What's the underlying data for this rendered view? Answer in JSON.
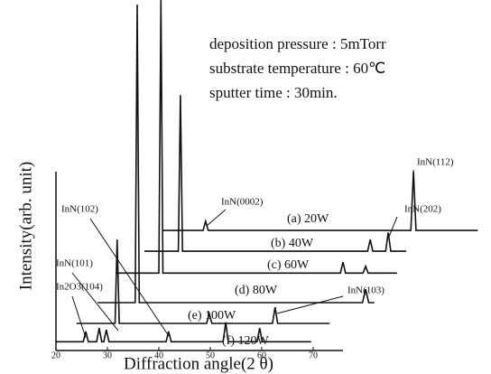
{
  "chart_data": {
    "type": "line",
    "xlabel": "Diffraction angle(2 θ)",
    "ylabel": "Intensity(arb. unit)",
    "xlim": [
      20,
      103
    ],
    "xticks": [
      20,
      30,
      40,
      50,
      60,
      70
    ],
    "ylim": [
      0,
      100
    ],
    "color": "#111111",
    "notes": [
      "deposition pressure : 5mTorr",
      "substrate temperature : 60℃",
      "sputter time : 30min."
    ],
    "annotations": [
      "InN(0002)",
      "InN(112)",
      "InN(202)",
      "InN(102)",
      "InN(101)",
      "In2O3(104)",
      "InN(103)"
    ],
    "series": [
      {
        "name": "(a) 20W",
        "x": [
          40.7,
          48.6,
          49.1,
          49.6,
          89,
          89.5,
          90,
          102
        ],
        "values": [
          34.6,
          34.6,
          37.2,
          34.6,
          34.6,
          51.3,
          34.6,
          34.6
        ]
      },
      {
        "name": "(b) 40W",
        "x": [
          37.2,
          43.8,
          44.2,
          44.6,
          80.6,
          81.1,
          81.6,
          84.1,
          84.6,
          85.1,
          88.1
        ],
        "values": [
          28.7,
          28.7,
          73,
          28.7,
          28.7,
          32,
          28.7,
          28.7,
          34,
          28.7,
          28.7
        ]
      },
      {
        "name": "(c) 60W",
        "x": [
          31.6,
          40,
          40.4,
          40.8,
          75.3,
          75.8,
          76.3,
          79.7,
          80.2,
          80.7,
          86.3
        ],
        "values": [
          22.5,
          22.5,
          100,
          22.5,
          22.5,
          25.6,
          22.5,
          22.5,
          24.4,
          22.5,
          22.5
        ]
      },
      {
        "name": "(d) 80W",
        "x": [
          28.1,
          35.4,
          35.8,
          36.2,
          79.6,
          80.2,
          80.8,
          81.9
        ],
        "values": [
          14.1,
          14.1,
          98.7,
          14.1,
          14.1,
          17.9,
          14.1,
          14.1
        ]
      },
      {
        "name": "(e) 100W",
        "x": [
          24,
          31.5,
          31.9,
          32.3,
          49.3,
          49.8,
          50.3,
          62.1,
          62.6,
          63.1,
          73.2
        ],
        "values": [
          8.2,
          8.2,
          32,
          8.2,
          8.2,
          11,
          8.2,
          8.2,
          12.8,
          8.2,
          8.2
        ]
      },
      {
        "name": "(f) 120W",
        "x": [
          20,
          25.3,
          25.8,
          26.3,
          27.9,
          28.4,
          28.9,
          29.3,
          29.8,
          30.3,
          41.4,
          41.9,
          42.4,
          52.5,
          53,
          53.5,
          59.1,
          59.6,
          60.1,
          69.6
        ],
        "values": [
          3,
          3,
          5.9,
          3,
          3,
          6.9,
          3,
          3,
          6.4,
          3,
          3,
          5.9,
          3,
          3,
          8.5,
          3,
          3,
          6.9,
          3,
          3
        ]
      }
    ]
  }
}
